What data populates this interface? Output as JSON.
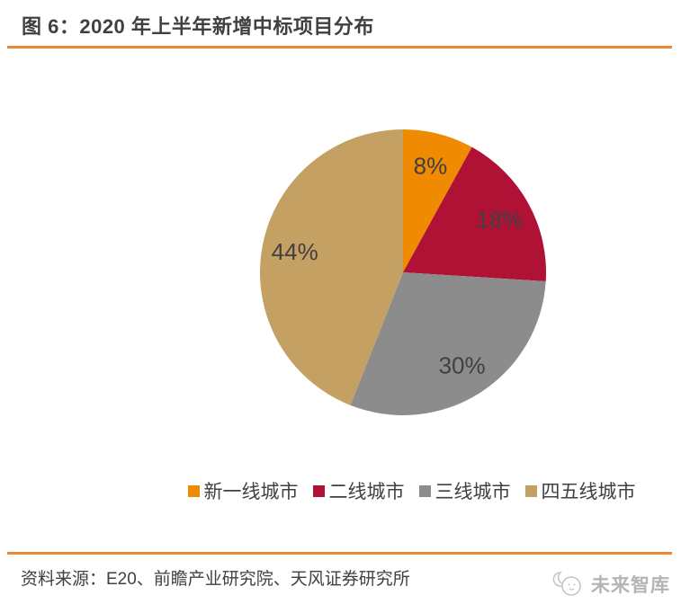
{
  "header": {
    "title": "图 6：2020 年上半年新增中标项目分布"
  },
  "chart_data": {
    "type": "pie",
    "title": "2020 年上半年新增中标项目分布",
    "categories": [
      "新一线城市",
      "二线城市",
      "三线城市",
      "四五线城市"
    ],
    "values": [
      8,
      18,
      30,
      44
    ],
    "labels": [
      "8%",
      "18%",
      "30%",
      "44%"
    ],
    "unit": "%",
    "colors": [
      "#F08A00",
      "#B01236",
      "#8C8C8C",
      "#C5A063"
    ],
    "start_angle_deg": 0,
    "direction": "clockwise",
    "legend_position": "bottom",
    "label_color": "#404040"
  },
  "footer": {
    "source": "资料来源：E20、前瞻产业研究院、天风证券研究所",
    "brand": "未来智库",
    "brand_icon": "crescent-moon-face"
  },
  "style": {
    "accent_rule": "#ED8733",
    "title_color": "#404040",
    "text_color": "#404040",
    "logo_color": "#b5b5b5"
  }
}
